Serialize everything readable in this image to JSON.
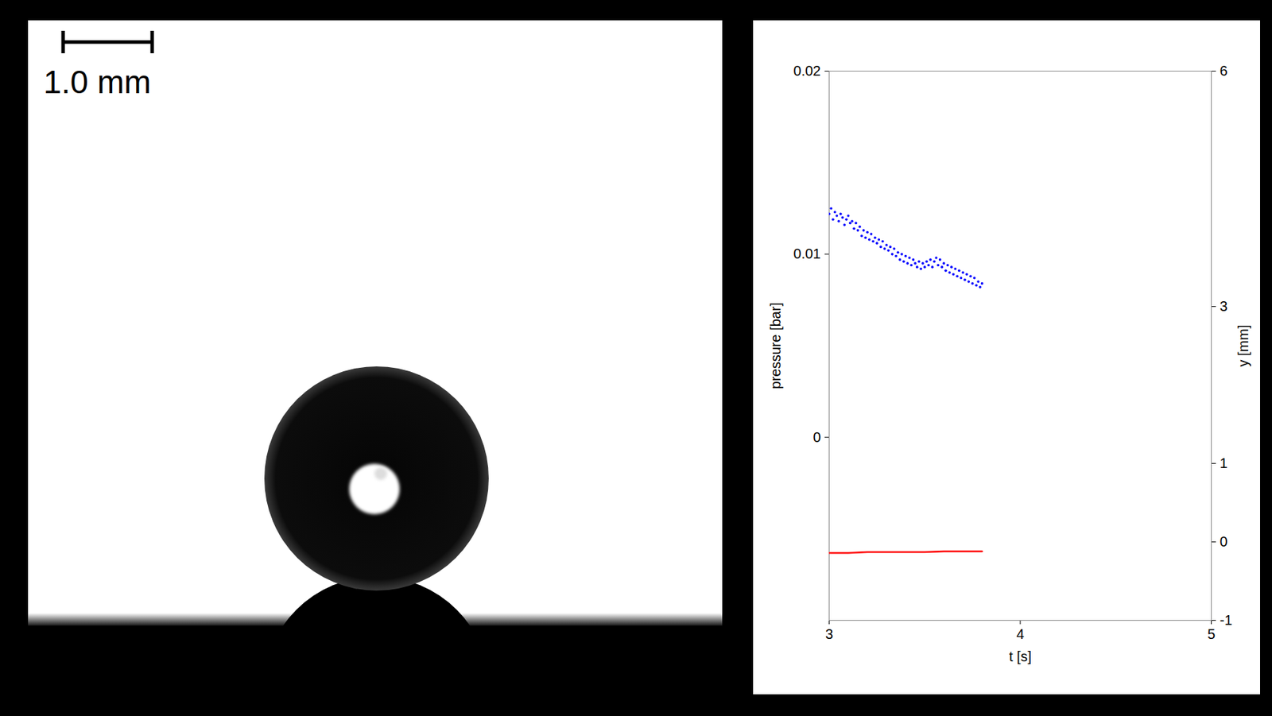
{
  "image": {
    "scale_bar_label": "1.0 mm"
  },
  "chart_data": {
    "type": "scatter",
    "xlabel": "t [s]",
    "ylabel": "pressure [bar]",
    "y2label": "y [mm]",
    "xlim": [
      3,
      5
    ],
    "xticks": [
      3,
      4,
      5
    ],
    "ylim": [
      -0.01,
      0.02
    ],
    "yticks": [
      0,
      0.01,
      0.02
    ],
    "y2lim": [
      -1,
      6
    ],
    "y2ticks": [
      -1,
      0,
      1,
      3,
      6
    ],
    "grid": false,
    "series": [
      {
        "type": "scatter",
        "marker": "dot",
        "color": "#0000ff",
        "axis": "y",
        "x": [
          3.0,
          3.01,
          3.02,
          3.03,
          3.04,
          3.05,
          3.06,
          3.07,
          3.08,
          3.09,
          3.1,
          3.11,
          3.12,
          3.13,
          3.14,
          3.15,
          3.16,
          3.17,
          3.18,
          3.19,
          3.2,
          3.21,
          3.22,
          3.23,
          3.24,
          3.25,
          3.26,
          3.27,
          3.28,
          3.29,
          3.3,
          3.31,
          3.32,
          3.33,
          3.34,
          3.35,
          3.36,
          3.37,
          3.38,
          3.39,
          3.4,
          3.41,
          3.42,
          3.43,
          3.44,
          3.45,
          3.46,
          3.47,
          3.48,
          3.49,
          3.5,
          3.51,
          3.52,
          3.53,
          3.54,
          3.55,
          3.56,
          3.57,
          3.58,
          3.59,
          3.6,
          3.61,
          3.62,
          3.63,
          3.64,
          3.65,
          3.66,
          3.67,
          3.68,
          3.69,
          3.7,
          3.71,
          3.72,
          3.73,
          3.74,
          3.75,
          3.76,
          3.77,
          3.78,
          3.79,
          3.8
        ],
        "values": [
          0.0122,
          0.0125,
          0.0119,
          0.0123,
          0.0121,
          0.0118,
          0.0122,
          0.012,
          0.0116,
          0.0119,
          0.0121,
          0.0117,
          0.0118,
          0.0114,
          0.0117,
          0.0113,
          0.0115,
          0.011,
          0.0113,
          0.0109,
          0.0112,
          0.0108,
          0.0111,
          0.0107,
          0.0109,
          0.0106,
          0.0108,
          0.0104,
          0.0107,
          0.0103,
          0.0105,
          0.0102,
          0.0104,
          0.01,
          0.0103,
          0.0099,
          0.0101,
          0.0097,
          0.01,
          0.0096,
          0.0099,
          0.0095,
          0.0098,
          0.0094,
          0.0097,
          0.0095,
          0.0093,
          0.0096,
          0.0092,
          0.0095,
          0.0093,
          0.0096,
          0.0094,
          0.0097,
          0.0093,
          0.0096,
          0.0098,
          0.0094,
          0.0097,
          0.0093,
          0.0095,
          0.0091,
          0.0094,
          0.009,
          0.0093,
          0.0089,
          0.0092,
          0.0088,
          0.0091,
          0.0087,
          0.009,
          0.0086,
          0.0089,
          0.0085,
          0.0088,
          0.0084,
          0.0087,
          0.0083,
          0.0085,
          0.0082,
          0.0084
        ]
      },
      {
        "type": "line",
        "line_style": "solid",
        "color": "#ff0000",
        "axis": "y2",
        "x": [
          3.0,
          3.1,
          3.2,
          3.3,
          3.4,
          3.5,
          3.6,
          3.7,
          3.8
        ],
        "values": [
          -0.14,
          -0.14,
          -0.13,
          -0.13,
          -0.13,
          -0.13,
          -0.12,
          -0.12,
          -0.12
        ]
      }
    ]
  }
}
